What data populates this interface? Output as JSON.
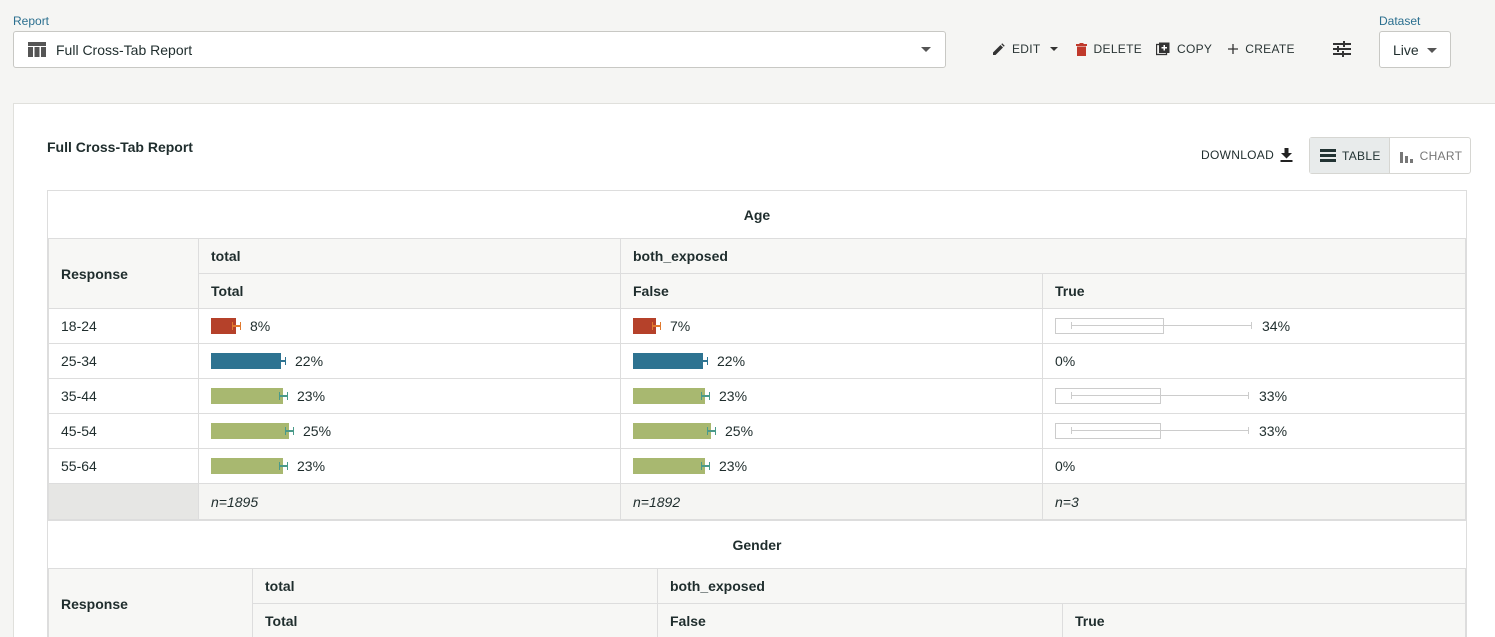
{
  "header": {
    "report_label": "Report",
    "report_value": "Full Cross-Tab Report",
    "edit_label": "EDIT",
    "delete_label": "DELETE",
    "copy_label": "COPY",
    "create_label": "CREATE",
    "dataset_label": "Dataset",
    "dataset_value": "Live"
  },
  "card": {
    "title": "Full Cross-Tab Report",
    "download_label": "DOWNLOAD",
    "table_label": "TABLE",
    "chart_label": "CHART"
  },
  "colors": {
    "red": "#b5412a",
    "blue": "#2e7391",
    "green": "#a8b870",
    "red_err": "#e07a30",
    "blue_err": "#2e7391",
    "green_err": "#4a9a8a"
  },
  "age": {
    "title": "Age",
    "response_header": "Response",
    "group1": "total",
    "group2": "both_exposed",
    "col1": "Total",
    "col2": "False",
    "col3": "True",
    "rows": [
      {
        "label": "18-24",
        "c1": "8%",
        "c2": "7%",
        "c3": "34%",
        "v1": 8,
        "v2": 7,
        "v3": 34,
        "color": "red"
      },
      {
        "label": "25-34",
        "c1": "22%",
        "c2": "22%",
        "c3": "0%",
        "v1": 22,
        "v2": 22,
        "v3": 0,
        "color": "blue"
      },
      {
        "label": "35-44",
        "c1": "23%",
        "c2": "23%",
        "c3": "33%",
        "v1": 23,
        "v2": 23,
        "v3": 33,
        "color": "green"
      },
      {
        "label": "45-54",
        "c1": "25%",
        "c2": "25%",
        "c3": "33%",
        "v1": 25,
        "v2": 25,
        "v3": 33,
        "color": "green"
      },
      {
        "label": "55-64",
        "c1": "23%",
        "c2": "23%",
        "c3": "0%",
        "v1": 23,
        "v2": 23,
        "v3": 0,
        "color": "green"
      }
    ],
    "n1": "n=1895",
    "n2": "n=1892",
    "n3": "n=3"
  },
  "gender": {
    "title": "Gender",
    "response_header": "Response",
    "group1": "total",
    "group2": "both_exposed",
    "col1": "Total",
    "col2": "False",
    "col3": "True"
  }
}
